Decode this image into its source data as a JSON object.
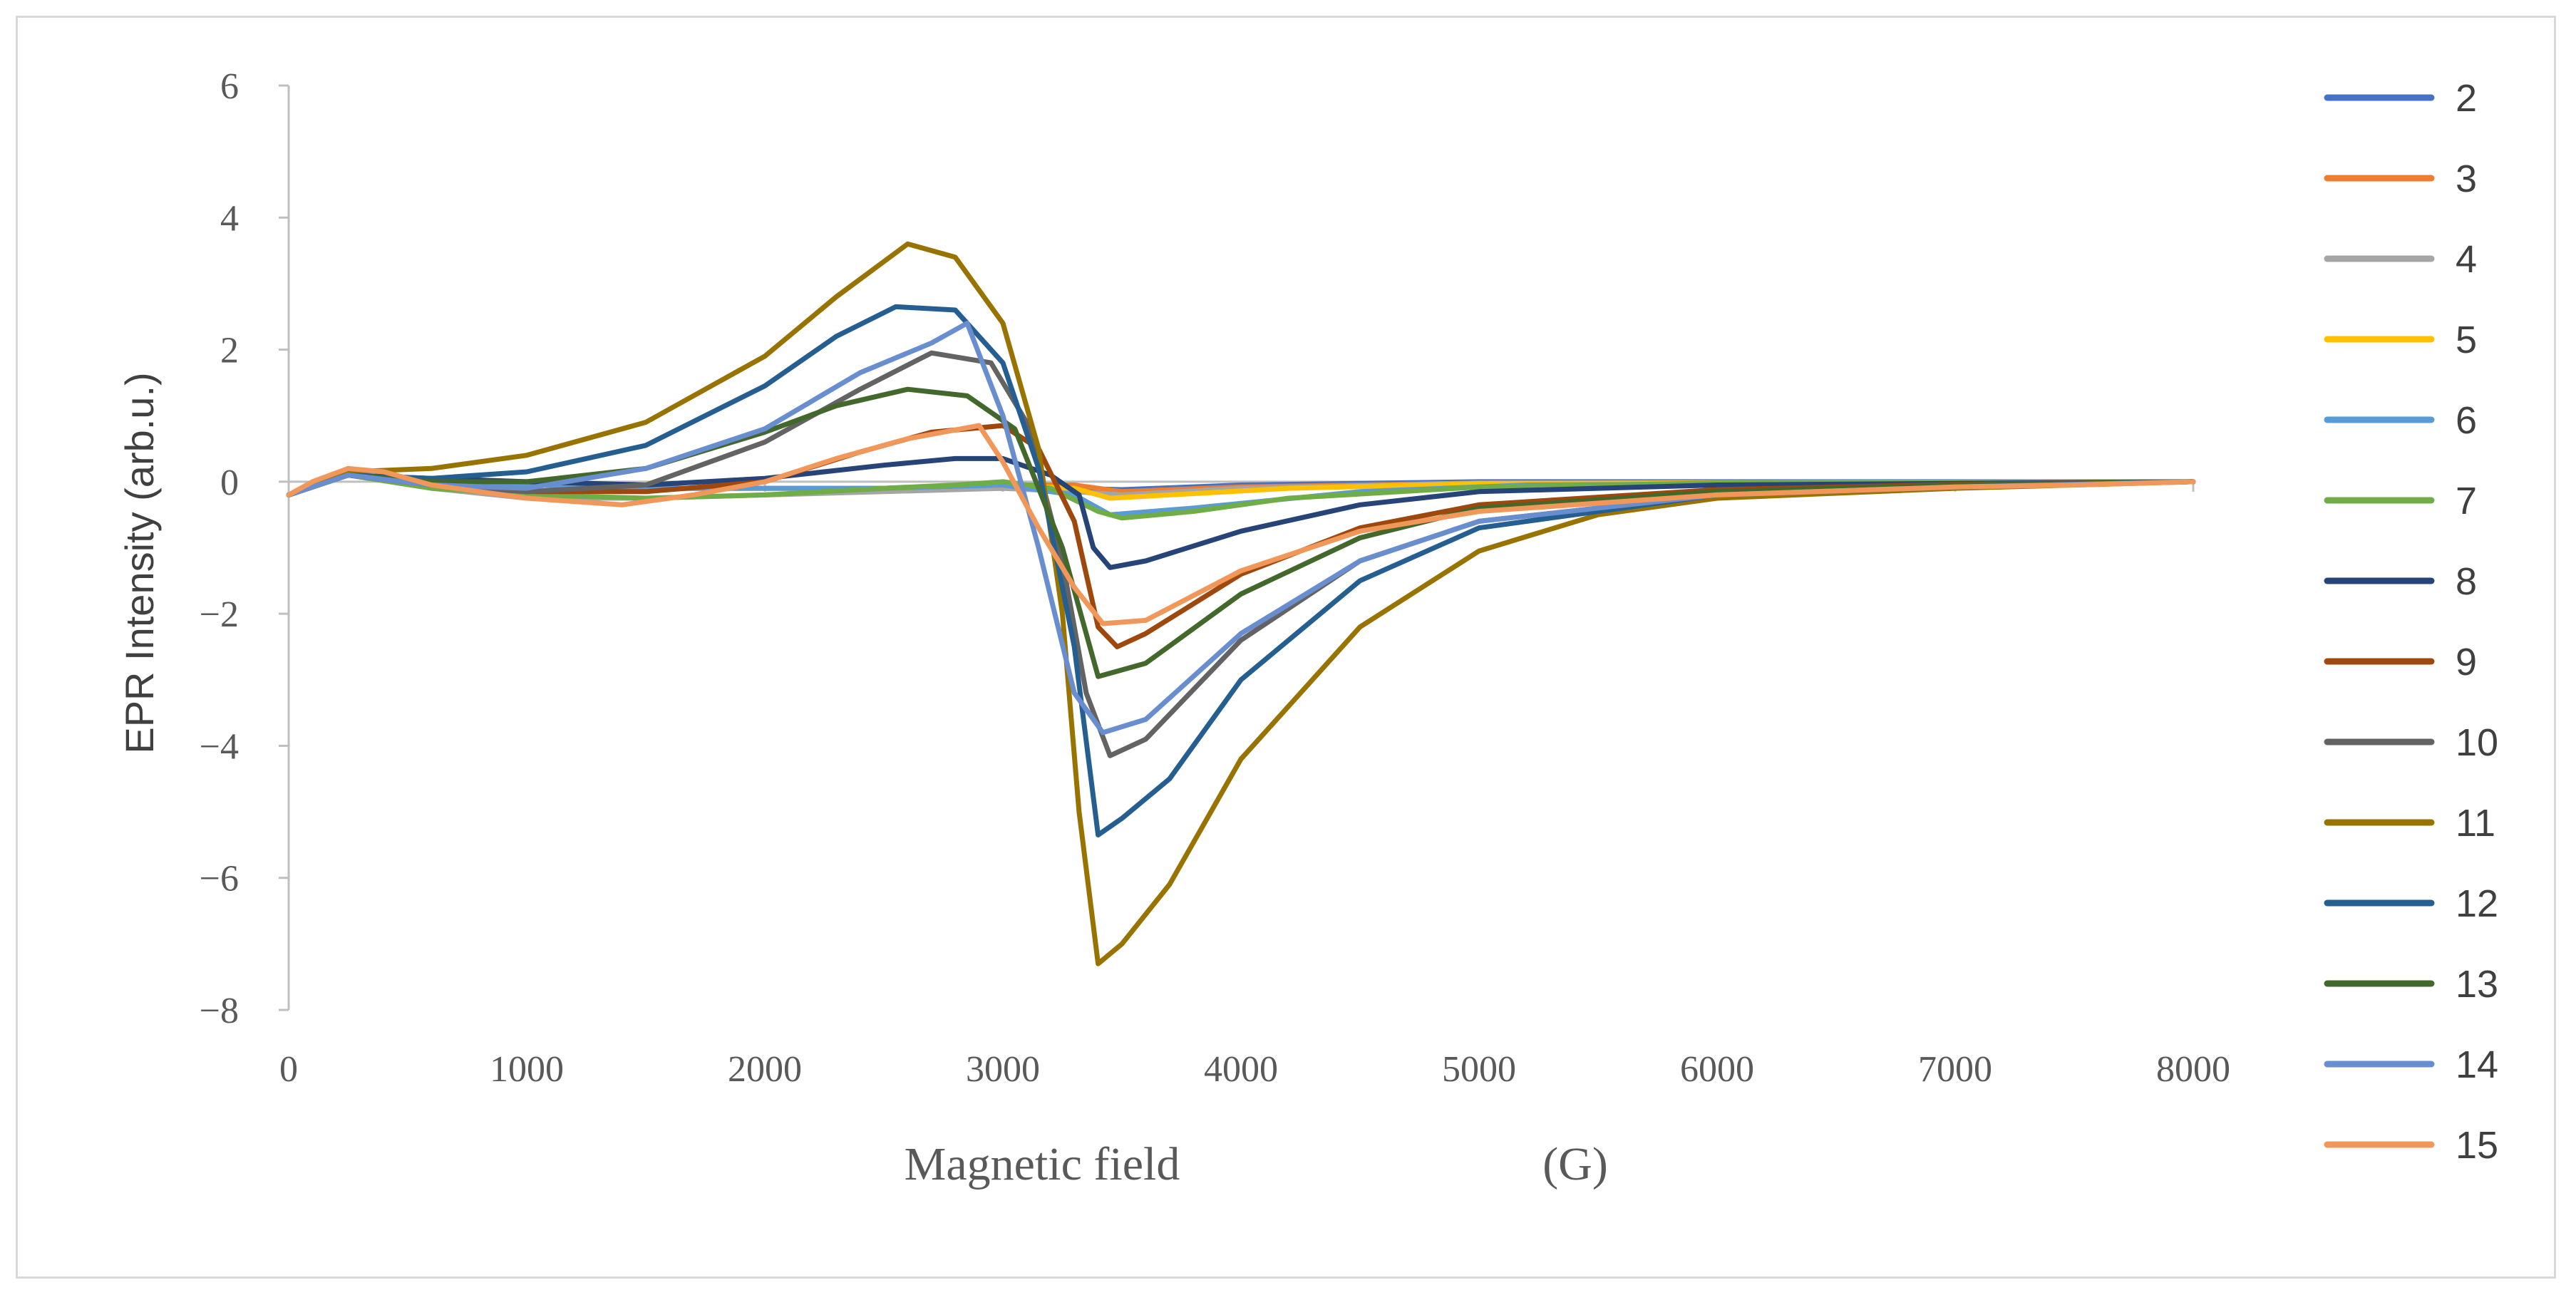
{
  "chart_data": {
    "type": "line",
    "title": "",
    "xlabel": "Magnetic field",
    "xunit": "(G)",
    "ylabel": "EPR Intensity (arb.u.)",
    "xlim": [
      0,
      8000
    ],
    "ylim": [
      -8,
      6
    ],
    "xticks": [
      0,
      1000,
      2000,
      3000,
      4000,
      5000,
      6000,
      7000,
      8000
    ],
    "xtick_labels": [
      "0",
      "1000",
      "2000",
      "3000",
      "4000",
      "5000",
      "6000",
      "7000",
      "8000"
    ],
    "yticks": [
      6,
      4,
      2,
      0,
      -2,
      -4,
      -6,
      -8
    ],
    "ytick_labels": [
      "6",
      "4",
      "2",
      "0",
      "−2",
      "−4",
      "−6",
      "−8"
    ],
    "grid": false,
    "legend_position": "right",
    "series": [
      {
        "name": "2",
        "color": "#4472C4",
        "points": [
          [
            0,
            -0.2
          ],
          [
            250,
            0.1
          ],
          [
            600,
            0.0
          ],
          [
            1500,
            -0.1
          ],
          [
            2500,
            -0.1
          ],
          [
            3000,
            -0.1
          ],
          [
            3200,
            -0.1
          ],
          [
            3300,
            -0.1
          ],
          [
            3500,
            -0.12
          ],
          [
            4000,
            -0.05
          ],
          [
            5000,
            0
          ],
          [
            8000,
            0
          ]
        ]
      },
      {
        "name": "3",
        "color": "#ED7D31",
        "points": [
          [
            0,
            -0.2
          ],
          [
            250,
            0.1
          ],
          [
            600,
            0.0
          ],
          [
            1500,
            -0.1
          ],
          [
            2500,
            -0.1
          ],
          [
            3000,
            -0.05
          ],
          [
            3300,
            -0.05
          ],
          [
            3500,
            -0.15
          ],
          [
            4000,
            -0.08
          ],
          [
            5000,
            -0.02
          ],
          [
            8000,
            0
          ]
        ]
      },
      {
        "name": "4",
        "color": "#A5A5A5",
        "points": [
          [
            0,
            -0.2
          ],
          [
            250,
            0.1
          ],
          [
            600,
            -0.1
          ],
          [
            1000,
            -0.25
          ],
          [
            1500,
            -0.25
          ],
          [
            2500,
            -0.15
          ],
          [
            3000,
            -0.1
          ],
          [
            3300,
            -0.15
          ],
          [
            3500,
            -0.2
          ],
          [
            4000,
            -0.1
          ],
          [
            5000,
            -0.02
          ],
          [
            8000,
            0
          ]
        ]
      },
      {
        "name": "5",
        "color": "#FFC000",
        "points": [
          [
            0,
            -0.2
          ],
          [
            250,
            0.1
          ],
          [
            600,
            0.0
          ],
          [
            1500,
            -0.1
          ],
          [
            2500,
            -0.1
          ],
          [
            3000,
            -0.05
          ],
          [
            3300,
            -0.1
          ],
          [
            3450,
            -0.25
          ],
          [
            3700,
            -0.2
          ],
          [
            4200,
            -0.1
          ],
          [
            5000,
            -0.03
          ],
          [
            8000,
            0
          ]
        ]
      },
      {
        "name": "6",
        "color": "#5B9BD5",
        "points": [
          [
            0,
            -0.2
          ],
          [
            250,
            0.1
          ],
          [
            600,
            0.0
          ],
          [
            1500,
            -0.1
          ],
          [
            2500,
            -0.1
          ],
          [
            3000,
            -0.05
          ],
          [
            3300,
            -0.2
          ],
          [
            3450,
            -0.5
          ],
          [
            3800,
            -0.4
          ],
          [
            4500,
            -0.15
          ],
          [
            5200,
            -0.05
          ],
          [
            8000,
            0
          ]
        ]
      },
      {
        "name": "7",
        "color": "#70AD47",
        "points": [
          [
            0,
            -0.2
          ],
          [
            250,
            0.1
          ],
          [
            600,
            -0.1
          ],
          [
            1000,
            -0.2
          ],
          [
            1500,
            -0.25
          ],
          [
            2000,
            -0.2
          ],
          [
            2500,
            -0.1
          ],
          [
            2800,
            -0.05
          ],
          [
            3000,
            0.0
          ],
          [
            3200,
            -0.1
          ],
          [
            3400,
            -0.45
          ],
          [
            3500,
            -0.55
          ],
          [
            3800,
            -0.45
          ],
          [
            4200,
            -0.25
          ],
          [
            5000,
            -0.08
          ],
          [
            6000,
            -0.02
          ],
          [
            8000,
            0
          ]
        ]
      },
      {
        "name": "8",
        "color": "#264478",
        "points": [
          [
            0,
            -0.2
          ],
          [
            250,
            0.1
          ],
          [
            600,
            0.05
          ],
          [
            1000,
            0.0
          ],
          [
            1500,
            -0.05
          ],
          [
            2000,
            0.05
          ],
          [
            2500,
            0.25
          ],
          [
            2800,
            0.35
          ],
          [
            3000,
            0.35
          ],
          [
            3200,
            0.1
          ],
          [
            3320,
            -0.2
          ],
          [
            3380,
            -1.0
          ],
          [
            3450,
            -1.3
          ],
          [
            3600,
            -1.2
          ],
          [
            4000,
            -0.75
          ],
          [
            4500,
            -0.35
          ],
          [
            5000,
            -0.15
          ],
          [
            6000,
            -0.05
          ],
          [
            8000,
            0
          ]
        ]
      },
      {
        "name": "9",
        "color": "#9E480E",
        "points": [
          [
            0,
            -0.2
          ],
          [
            250,
            0.1
          ],
          [
            600,
            -0.05
          ],
          [
            1000,
            -0.15
          ],
          [
            1500,
            -0.15
          ],
          [
            2000,
            0.0
          ],
          [
            2400,
            0.45
          ],
          [
            2700,
            0.75
          ],
          [
            3000,
            0.85
          ],
          [
            3150,
            0.5
          ],
          [
            3300,
            -0.6
          ],
          [
            3400,
            -2.2
          ],
          [
            3480,
            -2.5
          ],
          [
            3600,
            -2.3
          ],
          [
            4000,
            -1.4
          ],
          [
            4500,
            -0.7
          ],
          [
            5000,
            -0.35
          ],
          [
            6000,
            -0.12
          ],
          [
            7000,
            -0.04
          ],
          [
            8000,
            0
          ]
        ]
      },
      {
        "name": "10",
        "color": "#636363",
        "points": [
          [
            0,
            -0.2
          ],
          [
            250,
            0.1
          ],
          [
            600,
            -0.05
          ],
          [
            1000,
            -0.15
          ],
          [
            1500,
            -0.05
          ],
          [
            2000,
            0.6
          ],
          [
            2400,
            1.4
          ],
          [
            2700,
            1.95
          ],
          [
            2950,
            1.8
          ],
          [
            3100,
            0.9
          ],
          [
            3250,
            -1.2
          ],
          [
            3350,
            -3.2
          ],
          [
            3450,
            -4.15
          ],
          [
            3600,
            -3.9
          ],
          [
            4000,
            -2.4
          ],
          [
            4500,
            -1.2
          ],
          [
            5000,
            -0.6
          ],
          [
            6000,
            -0.2
          ],
          [
            7000,
            -0.08
          ],
          [
            8000,
            0
          ]
        ]
      },
      {
        "name": "11",
        "color": "#997300",
        "points": [
          [
            0,
            -0.2
          ],
          [
            250,
            0.15
          ],
          [
            600,
            0.2
          ],
          [
            1000,
            0.4
          ],
          [
            1500,
            0.9
          ],
          [
            2000,
            1.9
          ],
          [
            2300,
            2.8
          ],
          [
            2600,
            3.6
          ],
          [
            2800,
            3.4
          ],
          [
            3000,
            2.4
          ],
          [
            3150,
            0.5
          ],
          [
            3250,
            -2.0
          ],
          [
            3320,
            -5.0
          ],
          [
            3400,
            -7.3
          ],
          [
            3500,
            -7.0
          ],
          [
            3700,
            -6.1
          ],
          [
            4000,
            -4.2
          ],
          [
            4500,
            -2.2
          ],
          [
            5000,
            -1.05
          ],
          [
            5500,
            -0.5
          ],
          [
            6000,
            -0.25
          ],
          [
            7000,
            -0.1
          ],
          [
            8000,
            0
          ]
        ]
      },
      {
        "name": "12",
        "color": "#255E91",
        "points": [
          [
            0,
            -0.2
          ],
          [
            250,
            0.1
          ],
          [
            600,
            0.05
          ],
          [
            1000,
            0.15
          ],
          [
            1500,
            0.55
          ],
          [
            2000,
            1.45
          ],
          [
            2300,
            2.2
          ],
          [
            2550,
            2.65
          ],
          [
            2800,
            2.6
          ],
          [
            3000,
            1.8
          ],
          [
            3150,
            0.2
          ],
          [
            3300,
            -2.5
          ],
          [
            3400,
            -5.35
          ],
          [
            3500,
            -5.1
          ],
          [
            3700,
            -4.5
          ],
          [
            4000,
            -3.0
          ],
          [
            4500,
            -1.5
          ],
          [
            5000,
            -0.7
          ],
          [
            6000,
            -0.2
          ],
          [
            7000,
            -0.08
          ],
          [
            8000,
            0
          ]
        ]
      },
      {
        "name": "13",
        "color": "#43682B",
        "points": [
          [
            0,
            -0.2
          ],
          [
            250,
            0.1
          ],
          [
            600,
            0.0
          ],
          [
            1000,
            0.0
          ],
          [
            1500,
            0.2
          ],
          [
            2000,
            0.75
          ],
          [
            2300,
            1.15
          ],
          [
            2600,
            1.4
          ],
          [
            2850,
            1.3
          ],
          [
            3050,
            0.8
          ],
          [
            3250,
            -1.0
          ],
          [
            3400,
            -2.95
          ],
          [
            3600,
            -2.75
          ],
          [
            4000,
            -1.7
          ],
          [
            4500,
            -0.85
          ],
          [
            5000,
            -0.4
          ],
          [
            6000,
            -0.15
          ],
          [
            7000,
            -0.05
          ],
          [
            8000,
            0
          ]
        ]
      },
      {
        "name": "14",
        "color": "#698ED0",
        "points": [
          [
            0,
            -0.2
          ],
          [
            250,
            0.1
          ],
          [
            600,
            -0.05
          ],
          [
            1000,
            -0.1
          ],
          [
            1500,
            0.2
          ],
          [
            2000,
            0.8
          ],
          [
            2400,
            1.65
          ],
          [
            2700,
            2.1
          ],
          [
            2850,
            2.4
          ],
          [
            3000,
            1.0
          ],
          [
            3150,
            -1.0
          ],
          [
            3300,
            -3.2
          ],
          [
            3420,
            -3.8
          ],
          [
            3600,
            -3.6
          ],
          [
            4000,
            -2.3
          ],
          [
            4500,
            -1.2
          ],
          [
            5000,
            -0.6
          ],
          [
            6000,
            -0.2
          ],
          [
            7000,
            -0.08
          ],
          [
            8000,
            0
          ]
        ]
      },
      {
        "name": "15",
        "color": "#F1975A",
        "points": [
          [
            0,
            -0.2
          ],
          [
            100,
            0.0
          ],
          [
            250,
            0.2
          ],
          [
            400,
            0.15
          ],
          [
            600,
            -0.05
          ],
          [
            1000,
            -0.25
          ],
          [
            1400,
            -0.35
          ],
          [
            1700,
            -0.2
          ],
          [
            2000,
            0.0
          ],
          [
            2300,
            0.35
          ],
          [
            2600,
            0.65
          ],
          [
            2900,
            0.85
          ],
          [
            3000,
            0.3
          ],
          [
            3150,
            -0.7
          ],
          [
            3300,
            -1.6
          ],
          [
            3420,
            -2.15
          ],
          [
            3600,
            -2.1
          ],
          [
            4000,
            -1.35
          ],
          [
            4500,
            -0.75
          ],
          [
            5000,
            -0.45
          ],
          [
            6000,
            -0.2
          ],
          [
            7000,
            -0.08
          ],
          [
            7500,
            -0.05
          ],
          [
            8000,
            0
          ]
        ]
      }
    ]
  }
}
